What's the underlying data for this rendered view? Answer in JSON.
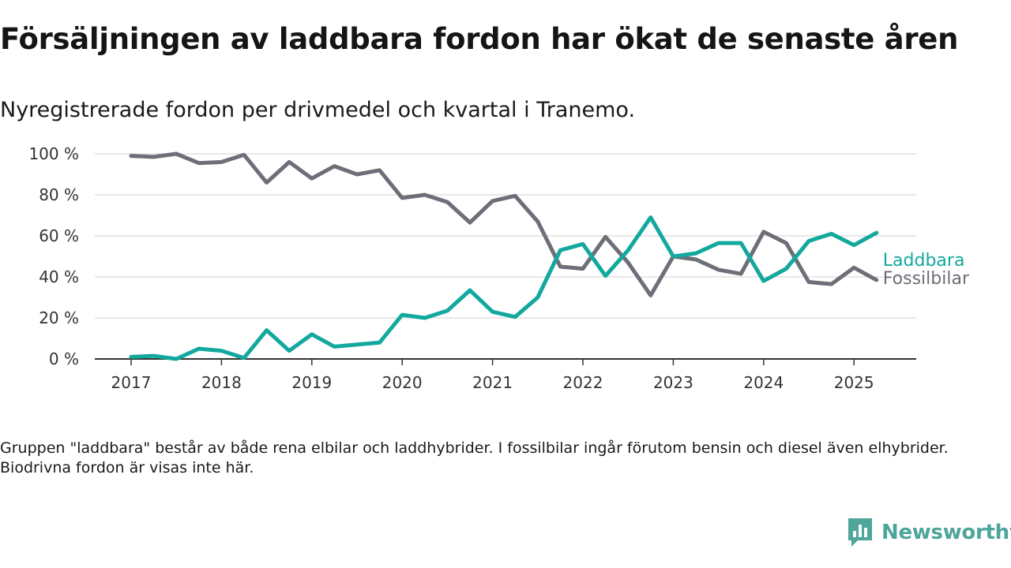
{
  "header": {
    "title": "Försäljningen av laddbara fordon har ökat de senaste åren",
    "subtitle": "Nyregistrerade fordon per drivmedel och kvartal i Tranemo."
  },
  "footer": {
    "note": "Gruppen \"laddbara\" består av både rena elbilar och laddhybrider. I fossilbilar ingår förutom bensin och diesel även elhybrider. Biodrivna fordon är visas inte här.",
    "brand": "Newsworthy"
  },
  "colors": {
    "laddbara": "#13a89e",
    "fossilbilar": "#6e6e78",
    "grid": "#d9d9d9",
    "axis": "#333333",
    "brand": "#4ea59a"
  },
  "chart_data": {
    "type": "line",
    "title": "Försäljningen av laddbara fordon har ökat de senaste åren",
    "subtitle": "Nyregistrerade fordon per drivmedel och kvartal i Tranemo.",
    "xlabel": "",
    "ylabel": "",
    "ylim": [
      0,
      100
    ],
    "y_ticks": [
      0,
      20,
      40,
      60,
      80,
      100
    ],
    "y_tick_labels": [
      "0 %",
      "20 %",
      "40 %",
      "60 %",
      "80 %",
      "100 %"
    ],
    "x_ticks": [
      "2017",
      "2018",
      "2019",
      "2020",
      "2021",
      "2022",
      "2023",
      "2024",
      "2025"
    ],
    "x": [
      "2017Q1",
      "2017Q2",
      "2017Q3",
      "2017Q4",
      "2018Q1",
      "2018Q2",
      "2018Q3",
      "2018Q4",
      "2019Q1",
      "2019Q2",
      "2019Q3",
      "2019Q4",
      "2020Q1",
      "2020Q2",
      "2020Q3",
      "2020Q4",
      "2021Q1",
      "2021Q2",
      "2021Q3",
      "2021Q4",
      "2022Q1",
      "2022Q2",
      "2022Q3",
      "2022Q4",
      "2023Q1",
      "2023Q2",
      "2023Q3",
      "2023Q4",
      "2024Q1",
      "2024Q2",
      "2024Q3",
      "2024Q4",
      "2025Q1",
      "2025Q2"
    ],
    "grid": true,
    "legend": "direct labels at line ends (right)",
    "series": [
      {
        "name": "Laddbara",
        "values": [
          1,
          1.5,
          0,
          5,
          4,
          0.5,
          14,
          4,
          12,
          6,
          7,
          8,
          21.5,
          20,
          23.5,
          33.5,
          23,
          20.5,
          30,
          53,
          56,
          40.5,
          53,
          69,
          50,
          51.5,
          56.5,
          56.5,
          38,
          44,
          57.5,
          61,
          55.5,
          61.5
        ]
      },
      {
        "name": "Fossilbilar",
        "values": [
          99,
          98.5,
          100,
          95.5,
          96,
          99.5,
          86,
          96,
          88,
          94,
          90,
          92,
          78.5,
          80,
          76.5,
          66.5,
          77,
          79.5,
          67,
          45,
          44,
          59.5,
          47,
          31,
          50,
          48.5,
          43.5,
          41.5,
          62,
          56.5,
          37.5,
          36.5,
          44.5,
          38.5
        ]
      }
    ]
  }
}
